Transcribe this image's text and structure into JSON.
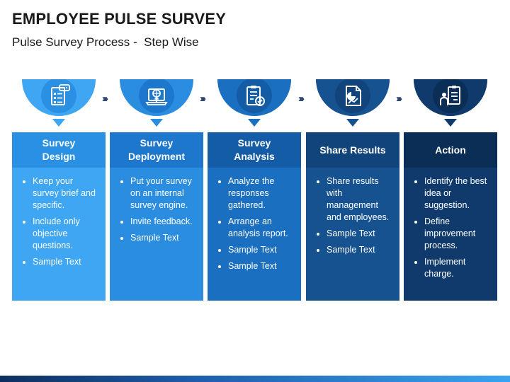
{
  "title": "EMPLOYEE PULSE SURVEY",
  "subtitle": "Pulse Survey Process -  Step Wise",
  "separator": "›››",
  "steps": [
    {
      "heading": "Survey\nDesign",
      "icon": "survey-checklist-icon",
      "colors": {
        "ring": "#3ea6f3",
        "inner": "#2a90e4",
        "head": "#2a90e4",
        "body": "#3ea6f3"
      },
      "bullets": [
        "Keep your survey brief and specific.",
        "Include only objective questions.",
        "Sample Text"
      ]
    },
    {
      "heading": "Survey\nDeployment",
      "icon": "laptop-upload-icon",
      "colors": {
        "ring": "#2b8de0",
        "inner": "#1d77cd",
        "head": "#1d77cd",
        "body": "#2b8de0"
      },
      "bullets": [
        "Put your survey on an internal survey engine.",
        "Invite feedback.",
        "Sample Text"
      ]
    },
    {
      "heading": "Survey\nAnalysis",
      "icon": "clipboard-check-icon",
      "colors": {
        "ring": "#1a6fc1",
        "inner": "#145ca6",
        "head": "#145ca6",
        "body": "#1a6fc1"
      },
      "bullets": [
        "Analyze the responses gathered.",
        "Arrange an analysis report.",
        "Sample Text",
        "Sample Text"
      ]
    },
    {
      "heading": "Share Results",
      "icon": "report-chart-icon",
      "colors": {
        "ring": "#165190",
        "inner": "#11447b",
        "head": "#11447b",
        "body": "#165190"
      },
      "bullets": [
        "Share results with management and employees.",
        "Sample Text",
        "Sample Text"
      ]
    },
    {
      "heading": "Action",
      "icon": "person-clipboard-icon",
      "colors": {
        "ring": "#0f3a6b",
        "inner": "#0b2e57",
        "head": "#0b2e57",
        "body": "#0f3a6b"
      },
      "bullets": [
        "Identify the best idea or suggestion.",
        "Define improvement process.",
        "Implement charge."
      ]
    }
  ]
}
